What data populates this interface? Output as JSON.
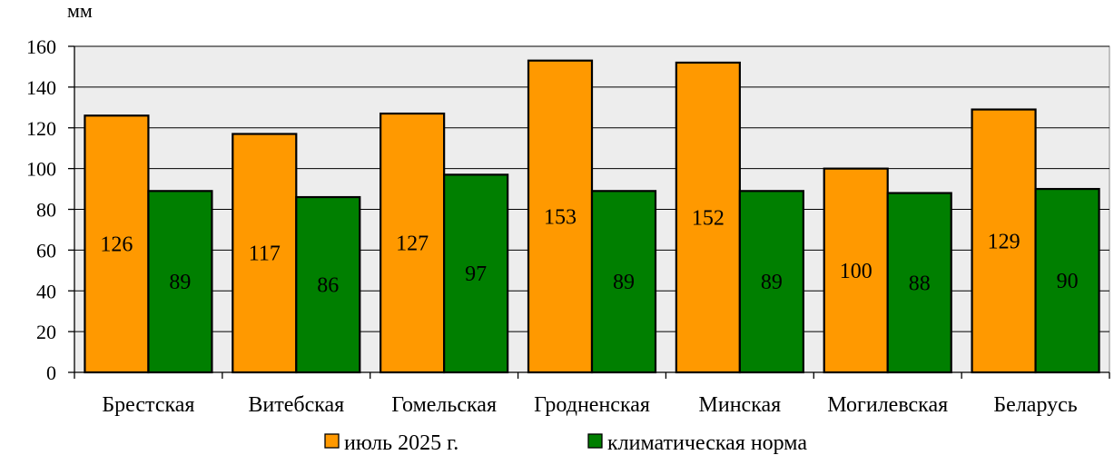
{
  "chart_data": {
    "type": "bar",
    "ylabel": "мм",
    "ylim": [
      0,
      160
    ],
    "yticks": [
      0,
      20,
      40,
      60,
      80,
      100,
      120,
      140,
      160
    ],
    "grid": true,
    "legend_position": "bottom",
    "categories": [
      "Брестская",
      "Витебская",
      "Гомельская",
      "Гродненская",
      "Минская",
      "Могилевская",
      "Беларусь"
    ],
    "series": [
      {
        "name": "июль 2025 г.",
        "color": "#FF9900",
        "values": [
          126,
          117,
          127,
          153,
          152,
          100,
          129
        ]
      },
      {
        "name": "климатическая норма",
        "color": "#007F00",
        "values": [
          89,
          86,
          97,
          89,
          89,
          88,
          90
        ]
      }
    ]
  }
}
